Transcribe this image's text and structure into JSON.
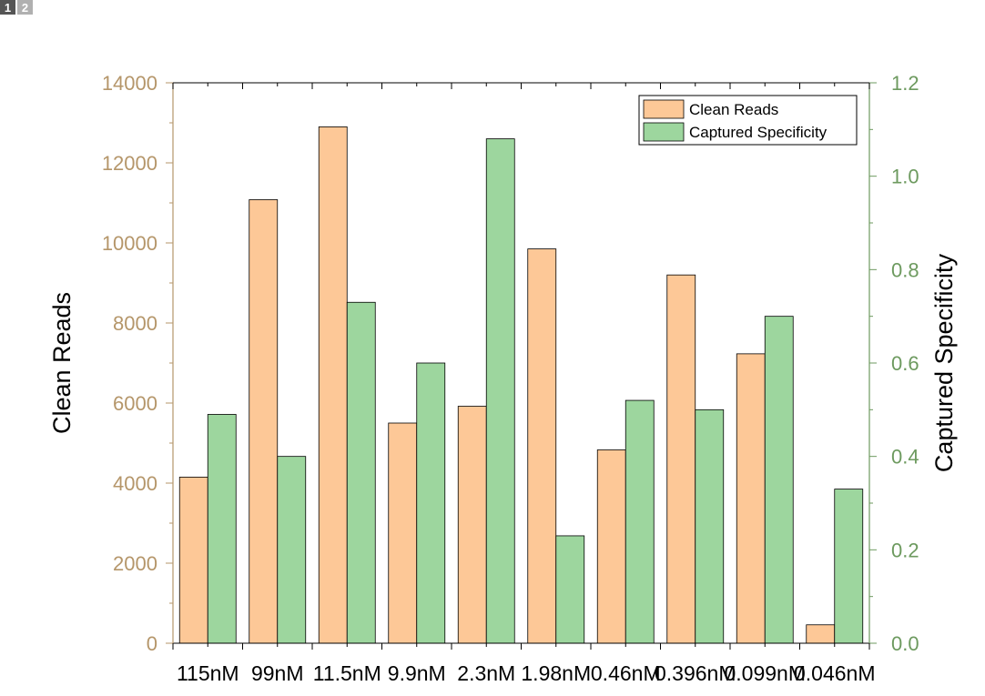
{
  "page_tabs": [
    {
      "label": "1",
      "active": true
    },
    {
      "label": "2",
      "active": false
    }
  ],
  "chart_data": {
    "type": "bar",
    "title": "",
    "xlabel": "",
    "categories": [
      "115nM",
      "99nM",
      "11.5nM",
      "9.9nM",
      "2.3nM",
      "1.98nM",
      "0.46nM",
      "0.396nM",
      "0.099nM",
      "0.046nM"
    ],
    "series": [
      {
        "name": "Clean Reads",
        "axis": "left",
        "color": "#fdc897",
        "values": [
          4150,
          11080,
          12900,
          5500,
          5920,
          9850,
          4830,
          9200,
          7230,
          460
        ]
      },
      {
        "name": "Captured Specificity",
        "axis": "right",
        "color": "#9dd69e",
        "values": [
          0.49,
          0.4,
          0.73,
          0.6,
          1.08,
          0.23,
          0.52,
          0.5,
          0.7,
          0.33
        ]
      }
    ],
    "y_left": {
      "label": "Clean Reads",
      "lim": [
        0,
        14000
      ],
      "ticks": [
        "0",
        "2000",
        "4000",
        "6000",
        "8000",
        "10000",
        "12000",
        "14000"
      ],
      "color": "#b5966a"
    },
    "y_right": {
      "label": "Captured Specificity",
      "lim": [
        0,
        1.2
      ],
      "ticks": [
        "0.0",
        "0.2",
        "0.4",
        "0.6",
        "0.8",
        "1.0",
        "1.2"
      ],
      "color": "#6d9a5f"
    },
    "legend_position": "top-right",
    "grid": false
  }
}
